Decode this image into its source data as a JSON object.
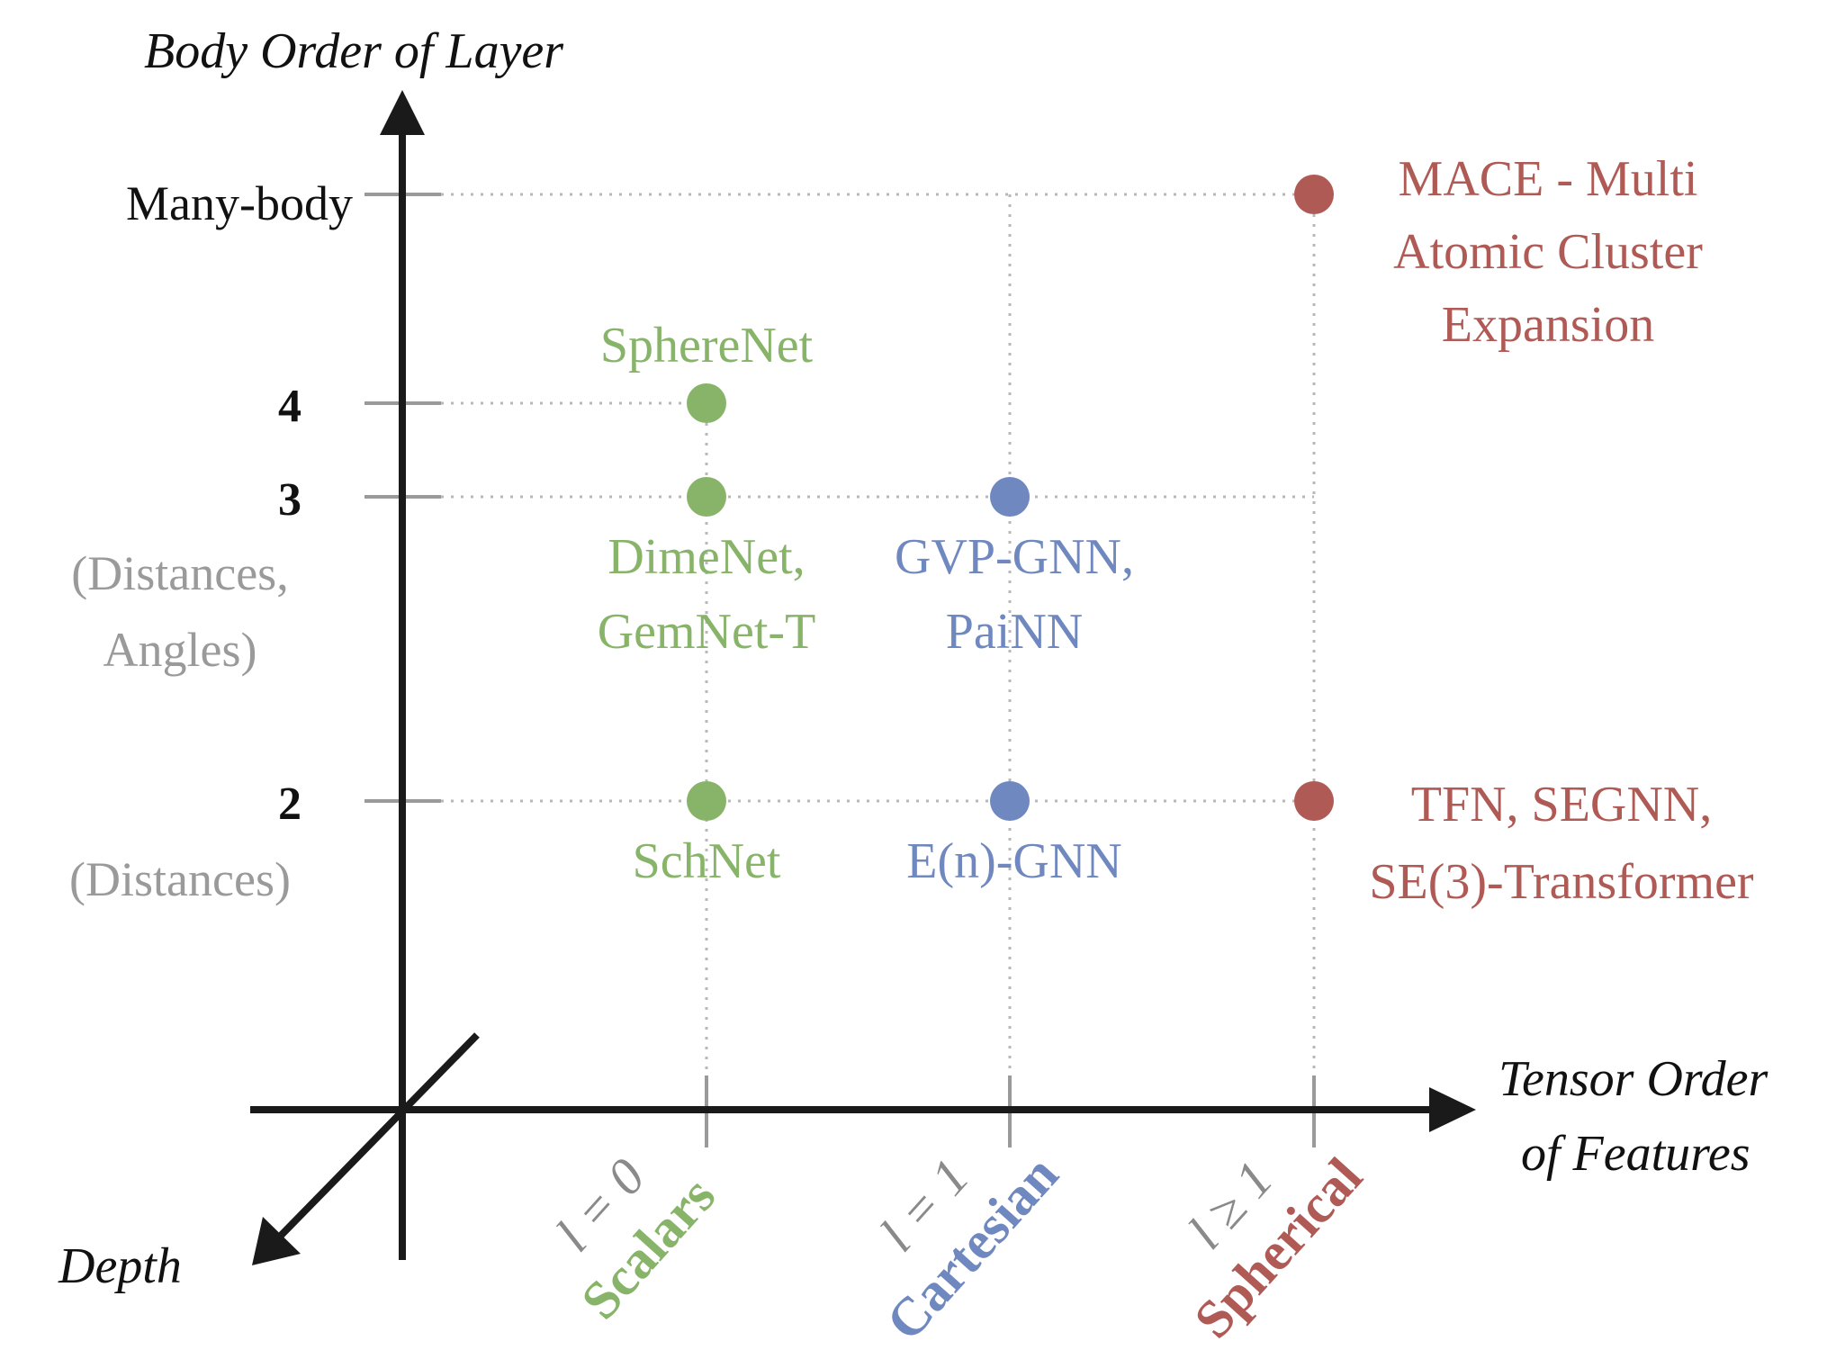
{
  "axes": {
    "y_title": "Body Order of Layer",
    "x_title_line1": "Tensor Order",
    "x_title_line2": "of Features",
    "z_title": "Depth"
  },
  "y_ticks": {
    "many": "Many-body",
    "four": "4",
    "three": "3",
    "three_sub_1": "(Distances,",
    "three_sub_2": "Angles)",
    "two": "2",
    "two_sub": "(Distances)"
  },
  "x_ticks": {
    "scalars_l": "l = 0",
    "scalars_name": "Scalars",
    "cartesian_l": "l = 1",
    "cartesian_name": "Cartesian",
    "spherical_l": "l ≥ 1",
    "spherical_name": "Spherical"
  },
  "models": {
    "spherenet": "SphereNet",
    "dimenet_1": "DimeNet,",
    "dimenet_2": "GemNet-T",
    "schnet": "SchNet",
    "gvp_1": "GVP-GNN,",
    "gvp_2": "PaiNN",
    "egnn": "E(n)-GNN",
    "mace_1": "MACE - Multi",
    "mace_2": "Atomic Cluster",
    "mace_3": "Expansion",
    "tfn_1": "TFN, SEGNN,",
    "tfn_2": "SE(3)-Transformer"
  },
  "colors": {
    "green": "#88b46a",
    "blue": "#7088c0",
    "red": "#b05a55",
    "axis": "#1a1a1a",
    "grid": "#b8b8b8"
  }
}
